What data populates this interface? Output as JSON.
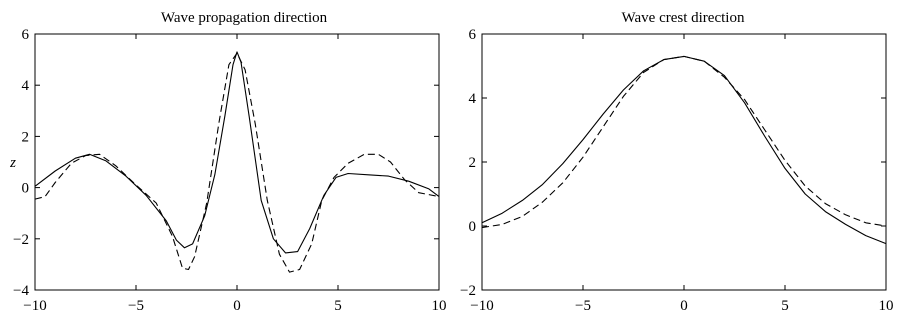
{
  "chart_data": [
    {
      "type": "line",
      "title": "Wave propagation direction",
      "xlabel": "",
      "ylabel": "z",
      "xlim": [
        -10,
        10
      ],
      "ylim": [
        -4,
        6
      ],
      "xticks": [
        -10,
        -5,
        0,
        5,
        10
      ],
      "yticks": [
        -4,
        -2,
        0,
        2,
        4,
        6
      ],
      "xtick_labels": [
        "−10",
        "−5",
        "0",
        "5",
        "10"
      ],
      "ytick_labels": [
        "−4",
        "−2",
        "0",
        "2",
        "4",
        "6"
      ],
      "grid": false,
      "series": [
        {
          "style": "solid",
          "color": "#000000",
          "points": [
            [
              -10,
              0.05
            ],
            [
              -9,
              0.65
            ],
            [
              -8,
              1.15
            ],
            [
              -7.3,
              1.3
            ],
            [
              -6.5,
              1.05
            ],
            [
              -5.5,
              0.45
            ],
            [
              -4.5,
              -0.3
            ],
            [
              -3.5,
              -1.3
            ],
            [
              -3,
              -2.05
            ],
            [
              -2.6,
              -2.35
            ],
            [
              -2.2,
              -2.2
            ],
            [
              -1.6,
              -1.1
            ],
            [
              -1.1,
              0.5
            ],
            [
              -0.6,
              2.8
            ],
            [
              -0.2,
              4.8
            ],
            [
              0,
              5.3
            ],
            [
              0.2,
              4.9
            ],
            [
              0.6,
              2.8
            ],
            [
              1.2,
              -0.5
            ],
            [
              1.8,
              -2.0
            ],
            [
              2.4,
              -2.55
            ],
            [
              3.0,
              -2.5
            ],
            [
              3.6,
              -1.6
            ],
            [
              4.3,
              -0.3
            ],
            [
              4.9,
              0.4
            ],
            [
              5.5,
              0.55
            ],
            [
              6.5,
              0.5
            ],
            [
              7.5,
              0.45
            ],
            [
              8.5,
              0.25
            ],
            [
              9.5,
              -0.05
            ],
            [
              10,
              -0.35
            ]
          ]
        },
        {
          "style": "dashed",
          "color": "#000000",
          "points": [
            [
              -10,
              -0.45
            ],
            [
              -9.5,
              -0.35
            ],
            [
              -9,
              0.2
            ],
            [
              -8.2,
              0.95
            ],
            [
              -7.5,
              1.25
            ],
            [
              -6.8,
              1.3
            ],
            [
              -6,
              0.85
            ],
            [
              -5,
              0.1
            ],
            [
              -4,
              -0.6
            ],
            [
              -3.2,
              -1.9
            ],
            [
              -2.7,
              -3.15
            ],
            [
              -2.4,
              -3.2
            ],
            [
              -2.1,
              -2.7
            ],
            [
              -1.5,
              -0.6
            ],
            [
              -0.9,
              2.5
            ],
            [
              -0.4,
              4.8
            ],
            [
              0,
              5.25
            ],
            [
              0.4,
              4.6
            ],
            [
              0.9,
              2.5
            ],
            [
              1.5,
              -0.5
            ],
            [
              2.1,
              -2.6
            ],
            [
              2.6,
              -3.3
            ],
            [
              3.1,
              -3.2
            ],
            [
              3.7,
              -2.2
            ],
            [
              4.2,
              -0.5
            ],
            [
              4.8,
              0.4
            ],
            [
              5.5,
              0.95
            ],
            [
              6.3,
              1.3
            ],
            [
              7.0,
              1.3
            ],
            [
              7.6,
              1.0
            ],
            [
              8.3,
              0.3
            ],
            [
              9,
              -0.2
            ],
            [
              10,
              -0.35
            ]
          ]
        }
      ]
    },
    {
      "type": "line",
      "title": "Wave crest direction",
      "xlabel": "",
      "ylabel": "",
      "xlim": [
        -10,
        10
      ],
      "ylim": [
        -2,
        6
      ],
      "xticks": [
        -10,
        -5,
        0,
        5,
        10
      ],
      "yticks": [
        -2,
        0,
        2,
        4,
        6
      ],
      "xtick_labels": [
        "−10",
        "−5",
        "0",
        "5",
        "10"
      ],
      "ytick_labels": [
        "−2",
        "0",
        "2",
        "4",
        "6"
      ],
      "grid": false,
      "series": [
        {
          "style": "solid",
          "color": "#000000",
          "points": [
            [
              -10,
              0.1
            ],
            [
              -9,
              0.4
            ],
            [
              -8,
              0.8
            ],
            [
              -7,
              1.3
            ],
            [
              -6,
              1.95
            ],
            [
              -5,
              2.7
            ],
            [
              -4,
              3.5
            ],
            [
              -3,
              4.25
            ],
            [
              -2,
              4.85
            ],
            [
              -1,
              5.2
            ],
            [
              0,
              5.3
            ],
            [
              1,
              5.15
            ],
            [
              2,
              4.7
            ],
            [
              3,
              3.85
            ],
            [
              4,
              2.8
            ],
            [
              5,
              1.8
            ],
            [
              6,
              1.0
            ],
            [
              7,
              0.45
            ],
            [
              8,
              0.05
            ],
            [
              9,
              -0.3
            ],
            [
              10,
              -0.55
            ]
          ]
        },
        {
          "style": "dashed",
          "color": "#000000",
          "points": [
            [
              -10,
              -0.05
            ],
            [
              -9,
              0.05
            ],
            [
              -8,
              0.3
            ],
            [
              -7,
              0.75
            ],
            [
              -6,
              1.35
            ],
            [
              -5,
              2.15
            ],
            [
              -4,
              3.1
            ],
            [
              -3,
              4.05
            ],
            [
              -2,
              4.8
            ],
            [
              -1,
              5.2
            ],
            [
              0,
              5.3
            ],
            [
              1,
              5.15
            ],
            [
              2,
              4.65
            ],
            [
              3,
              3.95
            ],
            [
              4,
              3.0
            ],
            [
              5,
              2.05
            ],
            [
              6,
              1.25
            ],
            [
              7,
              0.7
            ],
            [
              8,
              0.35
            ],
            [
              9,
              0.1
            ],
            [
              10,
              0.0
            ]
          ]
        }
      ]
    }
  ]
}
